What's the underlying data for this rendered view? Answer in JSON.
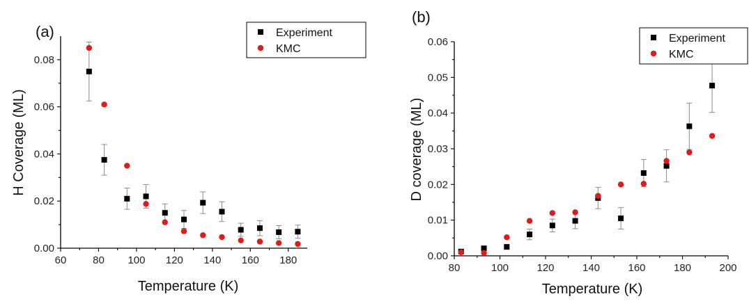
{
  "chart_data": [
    {
      "type": "scatter",
      "panel_label": "(a)",
      "xlabel": "Temperature (K)",
      "ylabel": "H Coverage (ML)",
      "xlim": [
        60,
        190
      ],
      "ylim": [
        0,
        0.09
      ],
      "xticks": [
        60,
        80,
        100,
        120,
        140,
        160,
        180
      ],
      "yticks": [
        0.0,
        0.02,
        0.04,
        0.06,
        0.08
      ],
      "ytick_labels": [
        "0.00",
        "0.02",
        "0.04",
        "0.06",
        "0.08"
      ],
      "legend_position": "top-right",
      "series": [
        {
          "name": "Experiment",
          "marker": "square",
          "color": "#000000",
          "x": [
            75,
            83,
            95,
            105,
            115,
            125,
            135,
            145,
            155,
            165,
            175,
            185
          ],
          "y": [
            0.075,
            0.0375,
            0.021,
            0.022,
            0.015,
            0.0122,
            0.0193,
            0.0155,
            0.0078,
            0.0085,
            0.0068,
            0.007
          ],
          "err": [
            0.0125,
            0.0065,
            0.0045,
            0.005,
            0.0038,
            0.0038,
            0.0046,
            0.0042,
            0.0028,
            0.0032,
            0.0028,
            0.0028
          ]
        },
        {
          "name": "KMC",
          "marker": "circle",
          "color": "#e11a1a",
          "x": [
            75,
            83,
            95,
            105,
            115,
            125,
            135,
            145,
            155,
            165,
            175,
            185
          ],
          "y": [
            0.085,
            0.061,
            0.035,
            0.0188,
            0.011,
            0.0072,
            0.0055,
            0.0047,
            0.0033,
            0.0028,
            0.0022,
            0.0018
          ]
        }
      ]
    },
    {
      "type": "scatter",
      "panel_label": "(b)",
      "xlabel": "Temperature (K)",
      "ylabel": "D coverage (ML)",
      "xlim": [
        80,
        200
      ],
      "ylim": [
        0,
        0.06
      ],
      "xticks": [
        80,
        100,
        120,
        140,
        160,
        180,
        200
      ],
      "yticks": [
        0.0,
        0.01,
        0.02,
        0.03,
        0.04,
        0.05,
        0.06
      ],
      "ytick_labels": [
        "0.00",
        "0.01",
        "0.02",
        "0.03",
        "0.04",
        "0.05",
        "0.06"
      ],
      "legend_position": "top-right",
      "series": [
        {
          "name": "Experiment",
          "marker": "square",
          "color": "#000000",
          "x": [
            83,
            93,
            103,
            113,
            123,
            133,
            143,
            153,
            163,
            173,
            183,
            193
          ],
          "y": [
            0.0012,
            0.0021,
            0.0025,
            0.006,
            0.0085,
            0.0098,
            0.0162,
            0.0105,
            0.0232,
            0.0252,
            0.0363,
            0.0477
          ],
          "err": [
            0.0004,
            0.0005,
            0.0006,
            0.0015,
            0.0018,
            0.0022,
            0.003,
            0.003,
            0.0038,
            0.0045,
            0.0065,
            0.0075
          ]
        },
        {
          "name": "KMC",
          "marker": "circle",
          "color": "#e11a1a",
          "x": [
            83,
            93,
            103,
            113,
            123,
            133,
            143,
            153,
            163,
            173,
            183,
            193
          ],
          "y": [
            0.001,
            0.0008,
            0.0052,
            0.0098,
            0.012,
            0.0122,
            0.0168,
            0.02,
            0.0202,
            0.0266,
            0.029,
            0.0336
          ]
        }
      ]
    }
  ]
}
